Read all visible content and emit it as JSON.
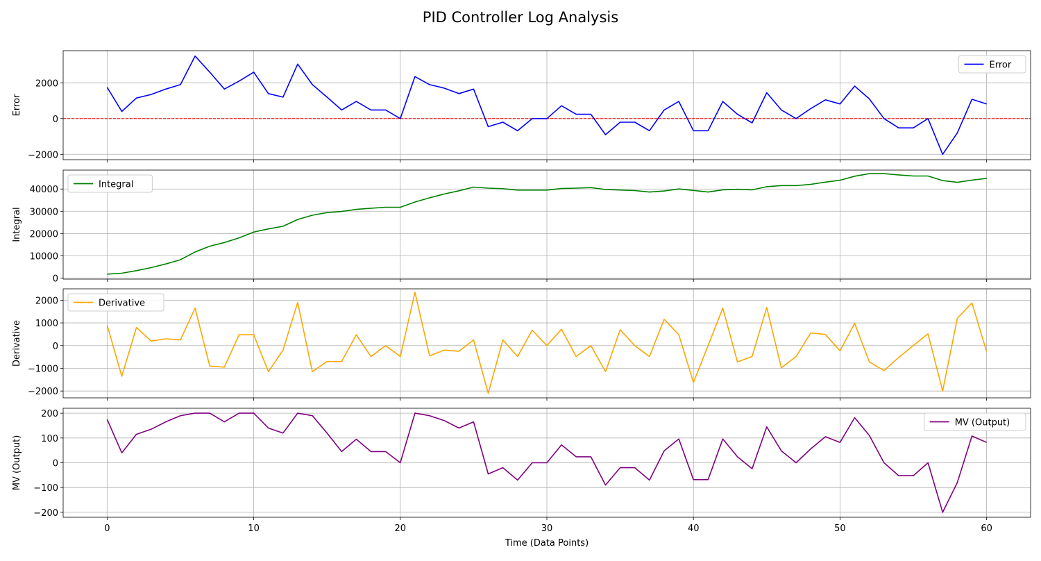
{
  "chart_data": {
    "title": "PID Controller Log Analysis",
    "xlabel": "Time (Data Points)",
    "x": [
      0,
      1,
      2,
      3,
      4,
      5,
      6,
      7,
      8,
      9,
      10,
      11,
      12,
      13,
      14,
      15,
      16,
      17,
      18,
      19,
      20,
      21,
      22,
      23,
      24,
      25,
      26,
      27,
      28,
      29,
      30,
      31,
      32,
      33,
      34,
      35,
      36,
      37,
      38,
      39,
      40,
      41,
      42,
      43,
      44,
      45,
      46,
      47,
      48,
      49,
      50,
      51,
      52,
      53,
      54,
      55,
      56,
      57,
      58,
      59,
      60
    ],
    "xlim": [
      -3,
      63
    ],
    "xticks": [
      0,
      10,
      20,
      30,
      40,
      50,
      60
    ],
    "xtick_labels": [
      "0",
      "10",
      "20",
      "30",
      "40",
      "50",
      "60"
    ],
    "grid": true,
    "subplots": [
      {
        "type": "line",
        "ylabel": "Error",
        "ylim": [
          -2300,
          3800
        ],
        "yticks": [
          -2000,
          0,
          2000
        ],
        "ytick_labels": [
          "−2000",
          "0",
          "2000"
        ],
        "legend": "upper right",
        "reference_line": {
          "y": 0,
          "color": "#ff0000",
          "style": "dashed"
        },
        "series": [
          {
            "name": "Error",
            "color": "#0000ff",
            "values": [
              1750,
              400,
              1150,
              1350,
              1650,
              1900,
              3500,
              2600,
              1650,
              2100,
              2600,
              1400,
              1200,
              3050,
              1900,
              1200,
              480,
              960,
              480,
              480,
              0,
              2350,
              1900,
              1700,
              1400,
              1650,
              -450,
              -200,
              -680,
              0,
              0,
              720,
              240,
              240,
              -900,
              -200,
              -200,
              -680,
              480,
              960,
              -680,
              -680,
              960,
              240,
              -240,
              1450,
              480,
              0,
              560,
              1050,
              820,
              1820,
              1100,
              0,
              -520,
              -520,
              0,
              -2000,
              -800,
              1080,
              820
            ]
          }
        ]
      },
      {
        "type": "line",
        "ylabel": "Integral",
        "ylim": [
          -500,
          48500
        ],
        "yticks": [
          0,
          10000,
          20000,
          30000,
          40000
        ],
        "ytick_labels": [
          "0",
          "10000",
          "20000",
          "30000",
          "40000"
        ],
        "legend": "upper left",
        "series": [
          {
            "name": "Integral",
            "color": "#008000",
            "values": [
              1750,
              2150,
              3300,
              4650,
              6300,
              8200,
              11700,
              14300,
              15950,
              18050,
              20650,
              22050,
              23250,
              26300,
              28200,
              29400,
              29900,
              30850,
              31350,
              31800,
              31800,
              34150,
              36050,
              37750,
              39200,
              40850,
              40400,
              40150,
              39500,
              39500,
              39500,
              40200,
              40400,
              40650,
              39750,
              39550,
              39300,
              38650,
              39100,
              40000,
              39350,
              38650,
              39650,
              39850,
              39600,
              41050,
              41550,
              41550,
              42100,
              43100,
              43950,
              45750,
              46900,
              46900,
              46350,
              45850,
              45850,
              43800,
              43000,
              44000,
              44800
            ]
          }
        ]
      },
      {
        "type": "line",
        "ylabel": "Derivative",
        "ylim": [
          -2300,
          2500
        ],
        "yticks": [
          -2000,
          -1000,
          0,
          1000,
          2000
        ],
        "ytick_labels": [
          "−2000",
          "−1000",
          "0",
          "1000",
          "2000"
        ],
        "legend": "upper left",
        "series": [
          {
            "name": "Derivative",
            "color": "#ffa500",
            "values": [
              900,
              -1350,
              800,
              200,
              300,
              250,
              1650,
              -900,
              -950,
              480,
              480,
              -1150,
              -200,
              1900,
              -1150,
              -700,
              -700,
              480,
              -480,
              0,
              -480,
              2350,
              -450,
              -200,
              -250,
              250,
              -2100,
              250,
              -480,
              680,
              0,
              720,
              -480,
              0,
              -1150,
              700,
              0,
              -480,
              1160,
              480,
              -1620,
              0,
              1650,
              -720,
              -480,
              1680,
              -980,
              -480,
              560,
              490,
              -230,
              980,
              -720,
              -1100,
              -520,
              0,
              520,
              -2000,
              1200,
              1880,
              -260
            ]
          }
        ]
      },
      {
        "type": "line",
        "ylabel": "MV (Output)",
        "ylim": [
          -220,
          220
        ],
        "yticks": [
          -200,
          -100,
          0,
          100,
          200
        ],
        "ytick_labels": [
          "−200",
          "−100",
          "0",
          "100",
          "200"
        ],
        "legend": "upper right",
        "series": [
          {
            "name": "MV (Output)",
            "color": "#800080",
            "values": [
              175,
              40,
              115,
              135,
              165,
              190,
              200,
              200,
              165,
              200,
              200,
              140,
              120,
              200,
              190,
              120,
              45,
              95,
              45,
              45,
              0,
              200,
              190,
              170,
              140,
              165,
              -45,
              -20,
              -70,
              0,
              0,
              72,
              24,
              24,
              -90,
              -20,
              -20,
              -70,
              48,
              96,
              -68,
              -68,
              96,
              24,
              -24,
              145,
              48,
              0,
              56,
              105,
              82,
              182,
              110,
              0,
              -52,
              -52,
              0,
              -200,
              -80,
              108,
              82
            ]
          }
        ]
      }
    ]
  }
}
